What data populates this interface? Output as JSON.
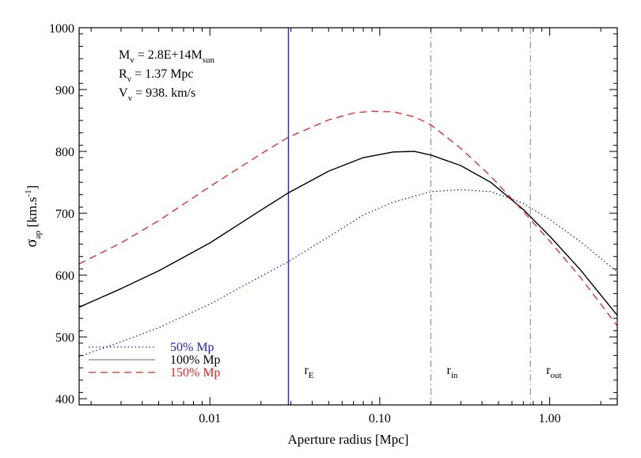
{
  "chart_data": {
    "type": "line",
    "xlabel": "Aperture radius [Mpc]",
    "ylabel": {
      "main": "σ",
      "sub": "ap",
      "rest": " [km.s",
      "sup": "-1",
      "end": "]"
    },
    "x_scale": "log",
    "xlim": [
      0.0017,
      2.5
    ],
    "ylim": [
      390,
      1000
    ],
    "x_ticks": [
      {
        "value": 0.01,
        "label": "0.01"
      },
      {
        "value": 0.1,
        "label": "0.10"
      },
      {
        "value": 1.0,
        "label": "1.00"
      }
    ],
    "y_ticks": [
      400,
      500,
      600,
      700,
      800,
      900,
      1000
    ],
    "annotations": [
      {
        "main": "M",
        "sub": "v",
        "rest": " = 2.8E+14M",
        "sub2": "sun"
      },
      {
        "main": "R",
        "sub": "v",
        "rest": " = 1.37 Mpc",
        "sub2": ""
      },
      {
        "main": "V",
        "sub": "v",
        "rest": " = 938. km/s",
        "sub2": ""
      }
    ],
    "vlines": [
      {
        "x": 0.029,
        "label_main": "r",
        "label_sub": "E",
        "style": "solid",
        "color": "#2222ee"
      },
      {
        "x": 0.2,
        "label_main": "r",
        "label_sub": "in",
        "style": "dashdot",
        "color": "#888888"
      },
      {
        "x": 0.77,
        "label_main": "r",
        "label_sub": "out",
        "style": "dashdot",
        "color": "#888888"
      }
    ],
    "series": [
      {
        "name": "50% Mp",
        "color": "#2222dd",
        "style": "dotted",
        "x": [
          0.0017,
          0.003,
          0.005,
          0.01,
          0.02,
          0.029,
          0.05,
          0.08,
          0.12,
          0.2,
          0.3,
          0.45,
          0.7,
          1.0,
          1.5,
          2.5
        ],
        "y": [
          468,
          492,
          515,
          553,
          598,
          622,
          662,
          697,
          718,
          735,
          738,
          735,
          716,
          690,
          655,
          605
        ]
      },
      {
        "name": "100% Mp",
        "color": "#000000",
        "style": "solid",
        "x": [
          0.0017,
          0.003,
          0.005,
          0.01,
          0.02,
          0.029,
          0.05,
          0.08,
          0.12,
          0.16,
          0.2,
          0.3,
          0.45,
          0.7,
          1.0,
          1.5,
          2.5
        ],
        "y": [
          548,
          578,
          607,
          652,
          705,
          733,
          768,
          790,
          799,
          800,
          794,
          777,
          750,
          706,
          663,
          610,
          535
        ]
      },
      {
        "name": "150% Mp",
        "color": "#ee2222",
        "style": "dashed",
        "x": [
          0.0017,
          0.003,
          0.005,
          0.01,
          0.02,
          0.029,
          0.05,
          0.07,
          0.09,
          0.12,
          0.16,
          0.2,
          0.3,
          0.45,
          0.7,
          1.0,
          1.5,
          2.5
        ],
        "y": [
          618,
          652,
          688,
          743,
          796,
          823,
          851,
          862,
          865,
          864,
          856,
          843,
          805,
          760,
          703,
          655,
          598,
          518
        ]
      }
    ],
    "legend_position": "bottom-left",
    "grid": false
  }
}
